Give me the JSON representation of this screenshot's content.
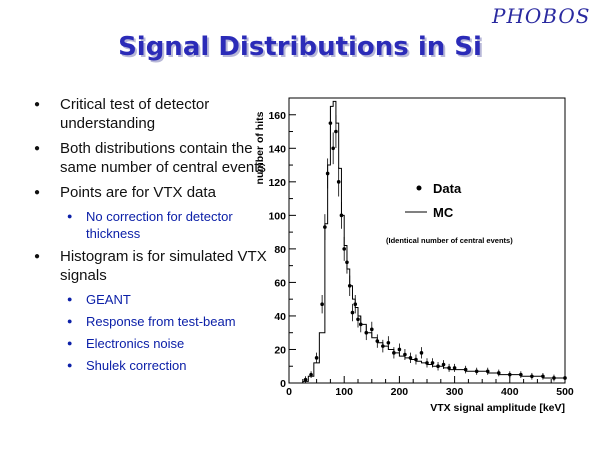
{
  "logo": {
    "text": "PHOBOS"
  },
  "slide": {
    "title": "Signal Distributions in Si"
  },
  "bullets": [
    {
      "level": 1,
      "text": "Critical test of detector understanding"
    },
    {
      "level": 1,
      "text": "Both distributions contain the same number of central events"
    },
    {
      "level": 1,
      "text": "Points are for VTX data"
    },
    {
      "level": 2,
      "text": "No correction for detector thickness"
    },
    {
      "level": 1,
      "text": "Histogram is for simulated VTX signals"
    },
    {
      "level": 2,
      "text": "GEANT"
    },
    {
      "level": 2,
      "text": "Response from test-beam"
    },
    {
      "level": 2,
      "text": "Electronics noise"
    },
    {
      "level": 2,
      "text": "Shulek correction"
    }
  ],
  "chart_data": {
    "type": "scatter",
    "xlabel": "VTX signal amplitude [keV]",
    "ylabel": "number of hits",
    "xlim": [
      0,
      500
    ],
    "ylim": [
      0,
      170
    ],
    "xticks": [
      0,
      100,
      200,
      300,
      400,
      500
    ],
    "yticks": [
      0,
      20,
      40,
      60,
      80,
      100,
      120,
      140,
      160
    ],
    "legend": {
      "position": "right",
      "entries": [
        {
          "name": "Data",
          "style": "points"
        },
        {
          "name": "MC",
          "style": "histogram"
        }
      ],
      "note": "(Identical number of central events)"
    },
    "series": [
      {
        "name": "Data",
        "style": "points-with-errors",
        "x": [
          30,
          40,
          50,
          60,
          65,
          70,
          75,
          80,
          85,
          90,
          95,
          100,
          105,
          110,
          115,
          120,
          125,
          130,
          140,
          150,
          160,
          170,
          180,
          190,
          200,
          210,
          220,
          230,
          240,
          250,
          260,
          270,
          280,
          290,
          300,
          320,
          340,
          360,
          380,
          400,
          420,
          440,
          460,
          480,
          500
        ],
        "y": [
          2,
          5,
          15,
          47,
          93,
          125,
          155,
          140,
          150,
          120,
          100,
          80,
          72,
          58,
          42,
          47,
          38,
          35,
          30,
          32,
          25,
          22,
          24,
          18,
          20,
          17,
          15,
          14,
          18,
          12,
          12,
          10,
          11,
          9,
          9,
          8,
          7,
          7,
          6,
          5,
          5,
          4,
          4,
          3,
          3
        ]
      },
      {
        "name": "MC",
        "style": "histogram",
        "x": [
          25,
          35,
          45,
          55,
          65,
          70,
          75,
          80,
          85,
          90,
          95,
          100,
          105,
          110,
          115,
          120,
          125,
          130,
          140,
          150,
          160,
          170,
          180,
          190,
          200,
          210,
          220,
          230,
          240,
          250,
          260,
          270,
          280,
          290,
          300,
          320,
          340,
          360,
          380,
          400,
          420,
          440,
          460,
          480,
          500
        ],
        "y": [
          1,
          4,
          12,
          30,
          95,
          130,
          165,
          168,
          155,
          128,
          100,
          82,
          68,
          58,
          50,
          45,
          40,
          35,
          30,
          27,
          24,
          22,
          20,
          18,
          16,
          15,
          14,
          13,
          12,
          11,
          10,
          10,
          9,
          8,
          8,
          7,
          7,
          6,
          5,
          5,
          4,
          4,
          3,
          3,
          3
        ]
      }
    ]
  }
}
